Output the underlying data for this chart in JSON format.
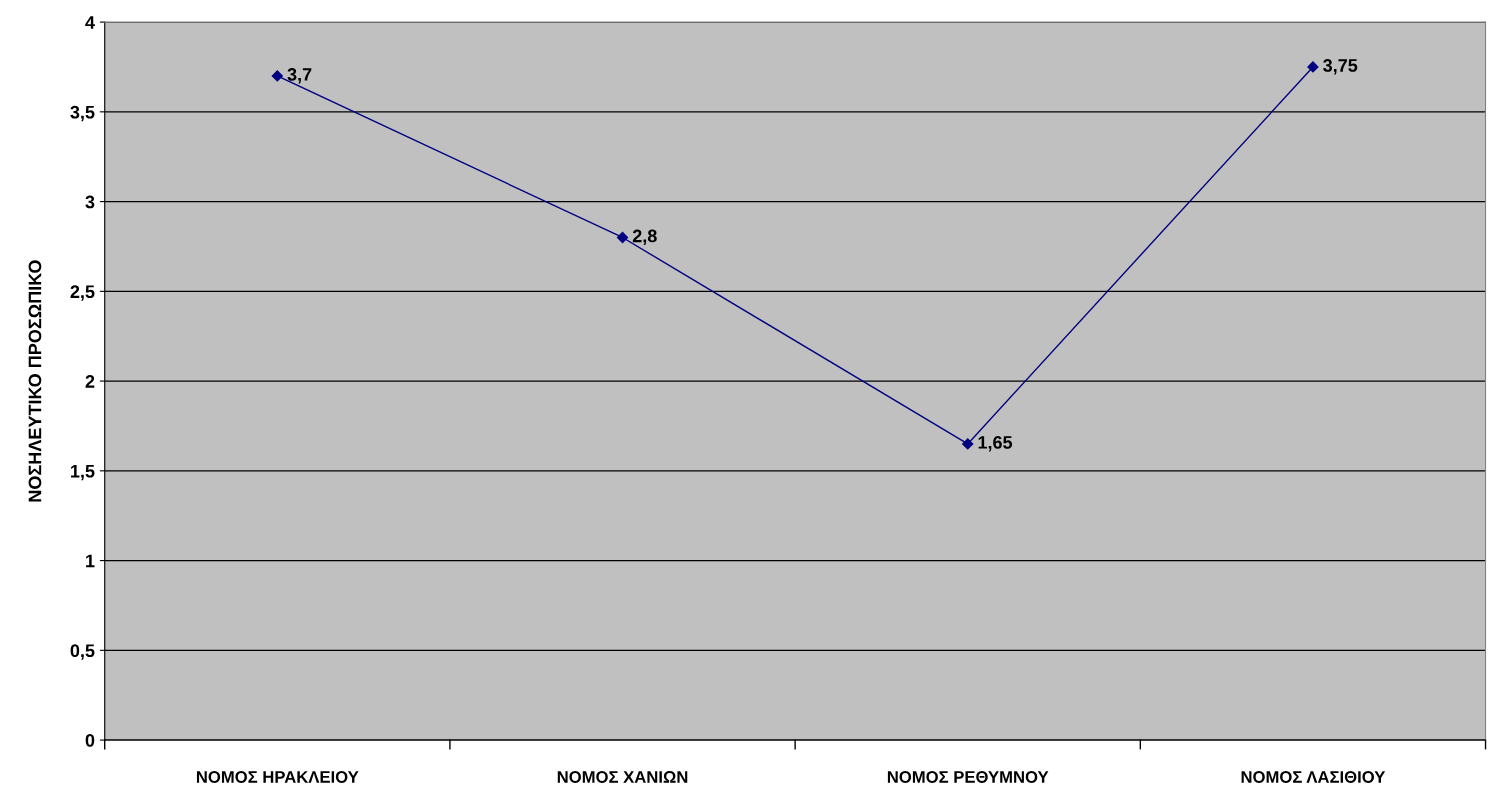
{
  "chart_data": {
    "type": "line",
    "ylabel": "ΝΟΣΗΛΕΥΤΙΚΟ ΠΡΟΣΩΠΙΚΟ",
    "categories": [
      "ΝΟΜΟΣ ΗΡΑΚΛΕΙΟΥ",
      "ΝΟΜΟΣ ΧΑΝΙΩΝ",
      "ΝΟΜΟΣ ΡΕΘΥΜΝΟΥ",
      "ΝΟΜΟΣ ΛΑΣΙΘΙΟΥ"
    ],
    "series": [
      {
        "color": "#000080",
        "values": [
          3.7,
          2.8,
          1.65,
          3.75
        ],
        "value_labels": [
          "3,7",
          "2,8",
          "1,65",
          "3,75"
        ]
      }
    ],
    "ylim": [
      0,
      4
    ],
    "yticks": [
      0,
      {
        "value": 0.5,
        "label": "0,5"
      },
      1,
      {
        "value": 1.5,
        "label": "1,5"
      },
      2,
      {
        "value": 2.5,
        "label": "2,5"
      },
      3,
      {
        "value": 3.5,
        "label": "3,5"
      },
      4
    ],
    "grid": "y",
    "marker": "diamond",
    "line_style": "solid"
  }
}
